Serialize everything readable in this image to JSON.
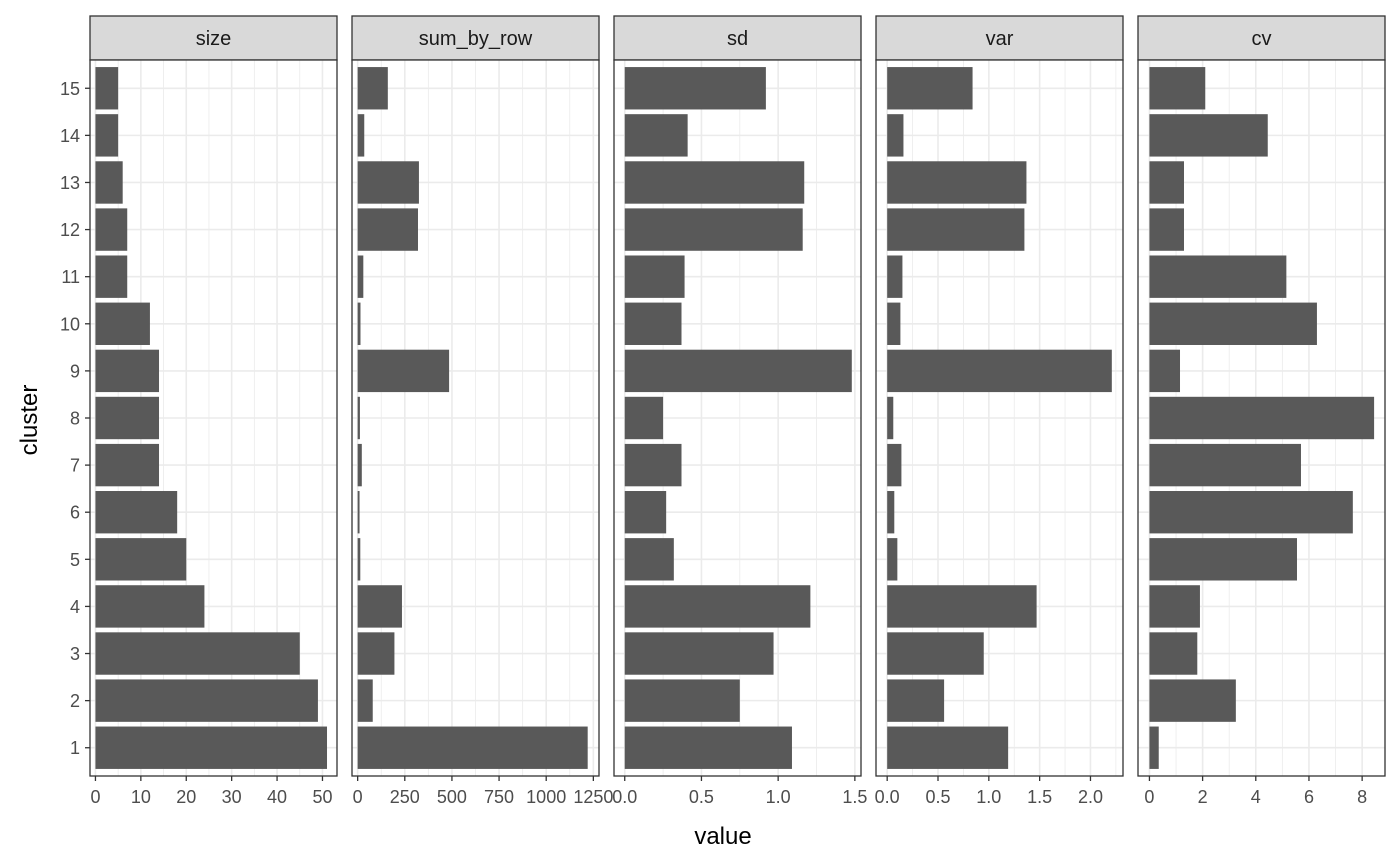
{
  "chart_data": {
    "type": "bar",
    "orientation": "horizontal",
    "facet_layout": "single-row, free x scales",
    "xlabel": "value",
    "ylabel": "cluster",
    "categories": [
      "1",
      "2",
      "3",
      "4",
      "5",
      "6",
      "7",
      "8",
      "9",
      "10",
      "11",
      "12",
      "13",
      "14",
      "15"
    ],
    "bar_color": "#595959",
    "panel_border_color": "#333333",
    "strip_fill": "#d9d9d9",
    "grid": true,
    "facets": [
      {
        "name": "size",
        "values": [
          51,
          49,
          45,
          24,
          20,
          18,
          14,
          14,
          14,
          12,
          7,
          7,
          6,
          5,
          5
        ],
        "xlim": [
          -1.2,
          53.2
        ],
        "ticks": [
          0,
          10,
          20,
          30,
          40,
          50
        ],
        "tick_labels": [
          "0",
          "10",
          "20",
          "30",
          "40",
          "50"
        ]
      },
      {
        "name": "sum_by_row",
        "values": [
          1220,
          80,
          195,
          235,
          14,
          10,
          22,
          12,
          485,
          15,
          30,
          320,
          325,
          35,
          160
        ],
        "xlim": [
          -30,
          1280
        ],
        "ticks": [
          0,
          250,
          500,
          750,
          1000,
          1250
        ],
        "tick_labels": [
          "0",
          "250",
          "500",
          "750",
          "1000",
          "1250"
        ]
      },
      {
        "name": "sd",
        "values": [
          1.09,
          0.75,
          0.97,
          1.21,
          0.32,
          0.27,
          0.37,
          0.25,
          1.48,
          0.37,
          0.39,
          1.16,
          1.17,
          0.41,
          0.92
        ],
        "xlim": [
          -0.07,
          1.54
        ],
        "ticks": [
          0.0,
          0.5,
          1.0,
          1.5
        ],
        "tick_labels": [
          "0.0",
          "0.5",
          "1.0",
          "1.5"
        ]
      },
      {
        "name": "var",
        "values": [
          1.19,
          0.56,
          0.95,
          1.47,
          0.1,
          0.07,
          0.14,
          0.06,
          2.21,
          0.13,
          0.15,
          1.35,
          1.37,
          0.16,
          0.84
        ],
        "xlim": [
          -0.11,
          2.32
        ],
        "ticks": [
          0.0,
          0.5,
          1.0,
          1.5,
          2.0
        ],
        "tick_labels": [
          "0.0",
          "0.5",
          "1.0",
          "1.5",
          "2.0"
        ]
      },
      {
        "name": "cv",
        "values": [
          0.35,
          3.25,
          1.8,
          1.9,
          5.55,
          7.65,
          5.7,
          8.45,
          1.15,
          6.3,
          5.15,
          1.3,
          1.3,
          4.45,
          2.1
        ],
        "xlim": [
          -0.43,
          8.86
        ],
        "ticks": [
          0,
          2,
          4,
          6,
          8
        ],
        "tick_labels": [
          "0",
          "2",
          "4",
          "6",
          "8"
        ]
      }
    ]
  }
}
